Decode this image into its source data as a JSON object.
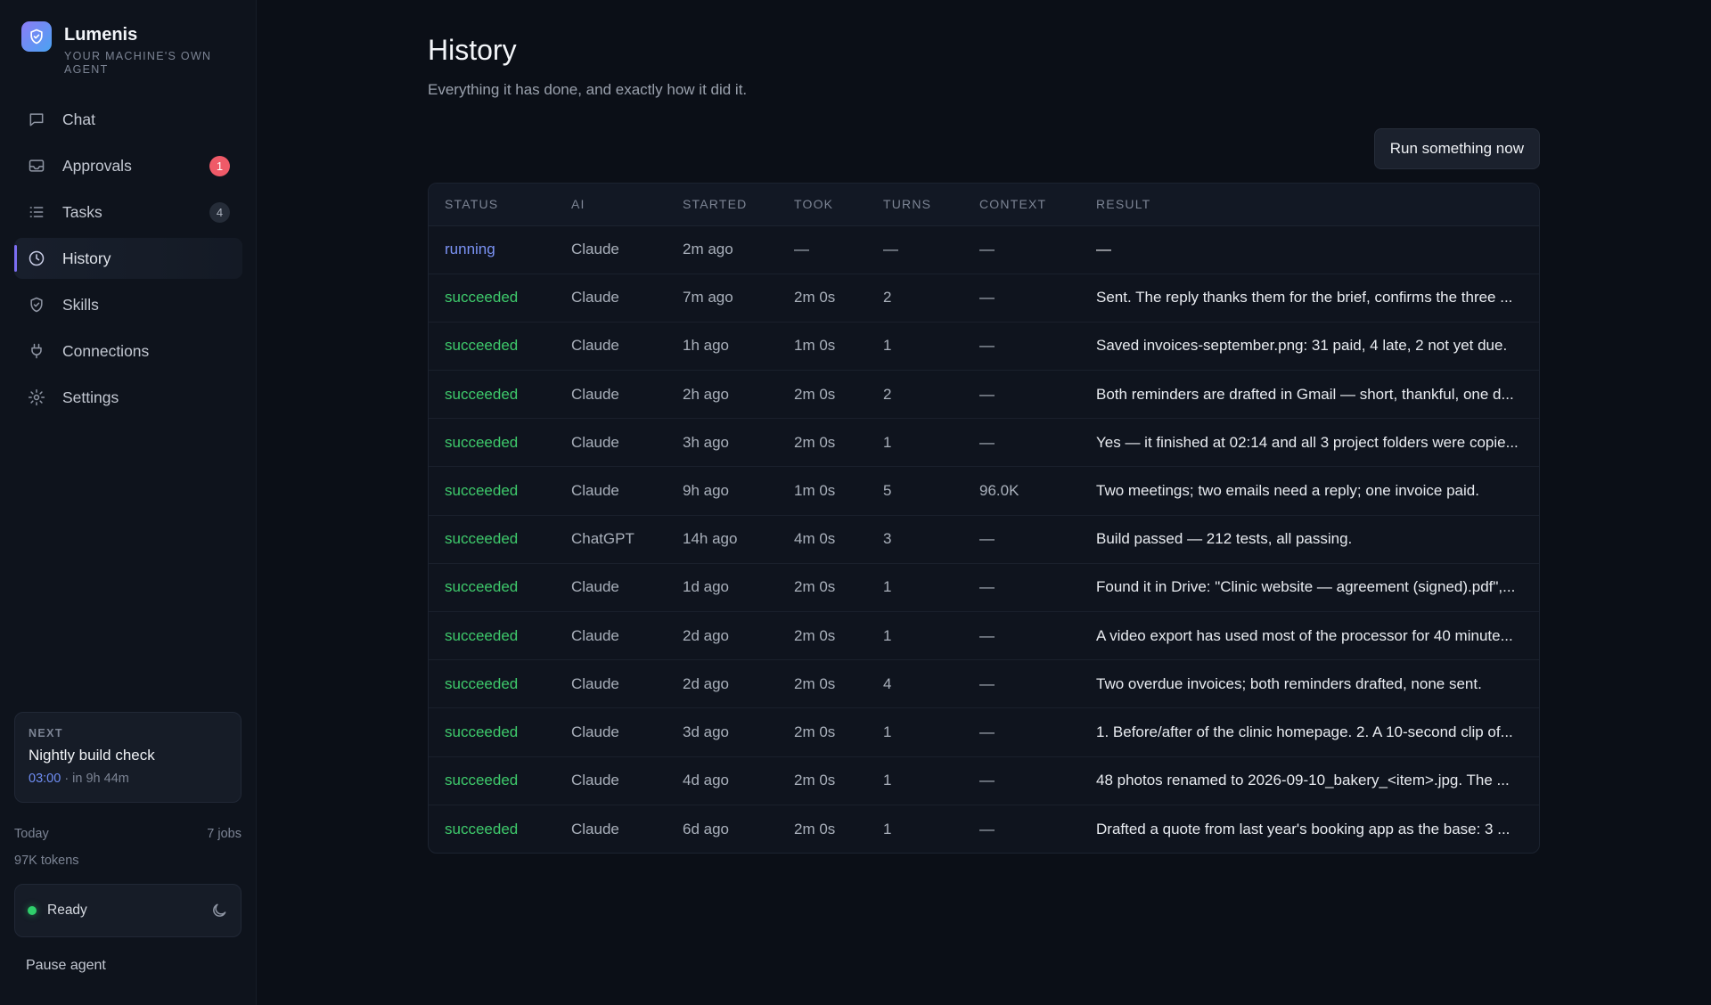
{
  "app": {
    "name": "Lumenis",
    "tagline": "YOUR MACHINE'S OWN AGENT"
  },
  "sidebar": {
    "items": [
      {
        "label": "Chat",
        "icon": "chat-bubble-icon"
      },
      {
        "label": "Approvals",
        "icon": "inbox-icon",
        "badge": "1"
      },
      {
        "label": "Tasks",
        "icon": "list-icon",
        "badge": "4"
      },
      {
        "label": "History",
        "icon": "clock-icon",
        "active": true
      },
      {
        "label": "Skills",
        "icon": "shield-check-icon"
      },
      {
        "label": "Connections",
        "icon": "plug-icon"
      },
      {
        "label": "Settings",
        "icon": "gear-icon"
      }
    ],
    "next": {
      "label": "NEXT",
      "title": "Nightly build check",
      "time": "03:00",
      "relative": " · in 9h 44m"
    },
    "stats": {
      "today_label": "Today",
      "jobs": "7 jobs",
      "tokens": "97K tokens"
    },
    "status": {
      "label": "Ready",
      "color": "#2fcf6b"
    },
    "pause_label": "Pause agent"
  },
  "header": {
    "title": "History",
    "subtitle": "Everything it has done, and exactly how it did it.",
    "run_button": "Run something now"
  },
  "table": {
    "columns": [
      "STATUS",
      "AI",
      "STARTED",
      "TOOK",
      "TURNS",
      "CONTEXT",
      "RESULT"
    ],
    "rows": [
      {
        "status": "running",
        "ai": "Claude",
        "started": "2m ago",
        "took": "—",
        "turns": "—",
        "context": "—",
        "result": "—"
      },
      {
        "status": "succeeded",
        "ai": "Claude",
        "started": "7m ago",
        "took": "2m 0s",
        "turns": "2",
        "context": "—",
        "result": "Sent. The reply thanks them for the brief, confirms the three ..."
      },
      {
        "status": "succeeded",
        "ai": "Claude",
        "started": "1h ago",
        "took": "1m 0s",
        "turns": "1",
        "context": "—",
        "result": "Saved invoices-september.png: 31 paid, 4 late, 2 not yet due."
      },
      {
        "status": "succeeded",
        "ai": "Claude",
        "started": "2h ago",
        "took": "2m 0s",
        "turns": "2",
        "context": "—",
        "result": "Both reminders are drafted in Gmail — short, thankful, one d..."
      },
      {
        "status": "succeeded",
        "ai": "Claude",
        "started": "3h ago",
        "took": "2m 0s",
        "turns": "1",
        "context": "—",
        "result": "Yes — it finished at 02:14 and all 3 project folders were copie..."
      },
      {
        "status": "succeeded",
        "ai": "Claude",
        "started": "9h ago",
        "took": "1m 0s",
        "turns": "5",
        "context": "96.0K",
        "result": "Two meetings; two emails need a reply; one invoice paid."
      },
      {
        "status": "succeeded",
        "ai": "ChatGPT",
        "started": "14h ago",
        "took": "4m 0s",
        "turns": "3",
        "context": "—",
        "result": "Build passed — 212 tests, all passing."
      },
      {
        "status": "succeeded",
        "ai": "Claude",
        "started": "1d ago",
        "took": "2m 0s",
        "turns": "1",
        "context": "—",
        "result": "Found it in Drive: \"Clinic website — agreement (signed).pdf\",..."
      },
      {
        "status": "succeeded",
        "ai": "Claude",
        "started": "2d ago",
        "took": "2m 0s",
        "turns": "1",
        "context": "—",
        "result": "A video export has used most of the processor for 40 minute..."
      },
      {
        "status": "succeeded",
        "ai": "Claude",
        "started": "2d ago",
        "took": "2m 0s",
        "turns": "4",
        "context": "—",
        "result": "Two overdue invoices; both reminders drafted, none sent."
      },
      {
        "status": "succeeded",
        "ai": "Claude",
        "started": "3d ago",
        "took": "2m 0s",
        "turns": "1",
        "context": "—",
        "result": "1. Before/after of the clinic homepage. 2. A 10-second clip of..."
      },
      {
        "status": "succeeded",
        "ai": "Claude",
        "started": "4d ago",
        "took": "2m 0s",
        "turns": "1",
        "context": "—",
        "result": "48 photos renamed to 2026-09-10_bakery_<item>.jpg. The ..."
      },
      {
        "status": "succeeded",
        "ai": "Claude",
        "started": "6d ago",
        "took": "2m 0s",
        "turns": "1",
        "context": "—",
        "result": "Drafted a quote from last year's booking app as the base: 3 ..."
      }
    ]
  },
  "colors": {
    "accent": "#7c6ef2",
    "running": "#7b93f5",
    "succeeded": "#3ec96b",
    "badge_alert": "#ef5a68"
  }
}
